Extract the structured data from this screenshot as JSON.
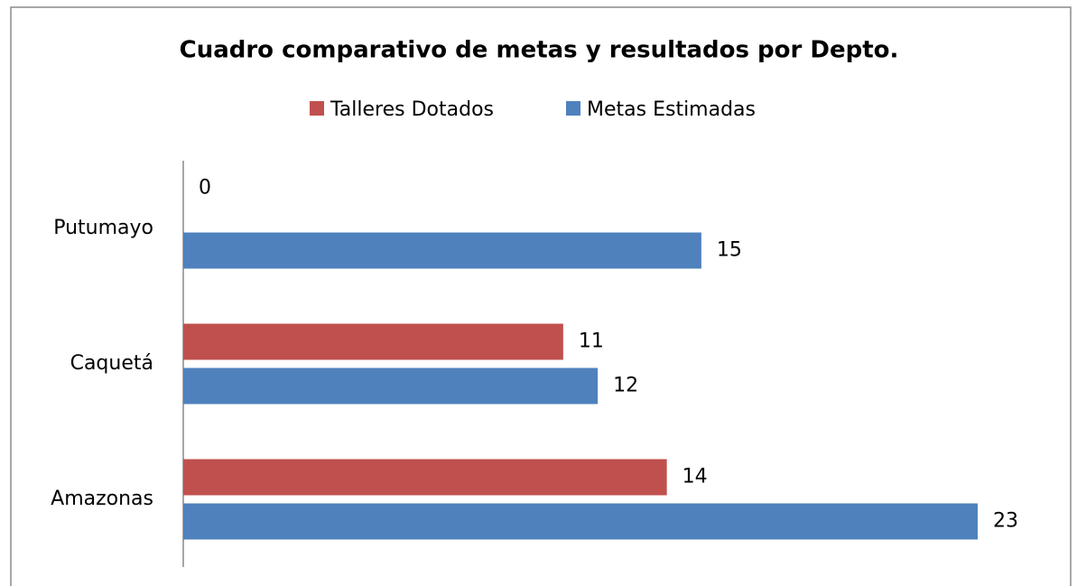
{
  "chart_data": {
    "type": "bar",
    "orientation": "horizontal",
    "title": "Cuadro comparativo de metas y resultados por Depto.",
    "categories": [
      "Putumayo",
      "Caquetá",
      "Amazonas"
    ],
    "series": [
      {
        "name": "Talleres Dotados",
        "color": "#c0504d",
        "values": [
          0,
          11,
          14
        ]
      },
      {
        "name": "Metas Estimadas",
        "color": "#4f81bd",
        "values": [
          15,
          12,
          23
        ]
      }
    ],
    "xlim": [
      0,
      25
    ],
    "legend": "top",
    "grid": false
  }
}
